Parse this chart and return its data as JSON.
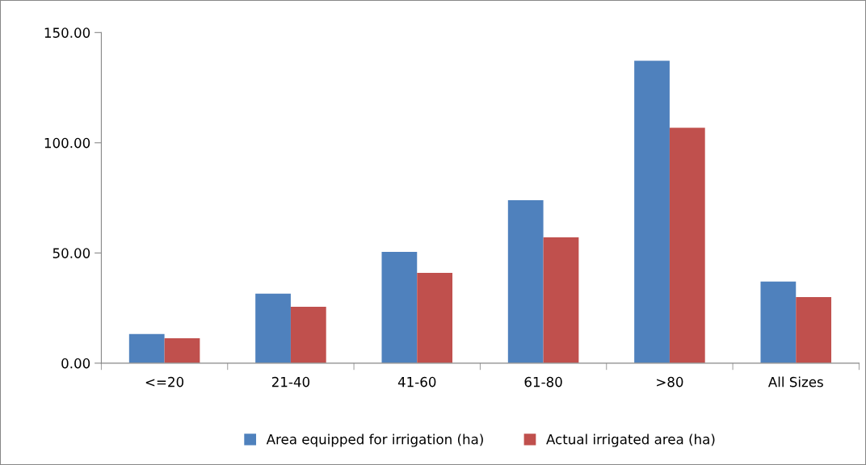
{
  "chart_data": {
    "type": "bar",
    "categories": [
      "<=20",
      "21-40",
      "41-60",
      "61-80",
      ">80",
      "All Sizes"
    ],
    "series": [
      {
        "name": "Area equipped for irrigation (ha)",
        "color": "#4f81bd",
        "values": [
          13.2,
          31.5,
          50.5,
          73.9,
          137.2,
          37.0
        ]
      },
      {
        "name": "Actual irrigated area (ha)",
        "color": "#c0504d",
        "values": [
          11.3,
          25.6,
          41.0,
          57.1,
          106.8,
          30.0
        ]
      }
    ],
    "ylim": [
      0,
      150
    ],
    "yticks": [
      {
        "value": 0,
        "label": "0.00"
      },
      {
        "value": 50,
        "label": "50.00"
      },
      {
        "value": 100,
        "label": "100.00"
      },
      {
        "value": 150,
        "label": "150.00"
      }
    ],
    "grid": false,
    "legend": "bottom"
  }
}
